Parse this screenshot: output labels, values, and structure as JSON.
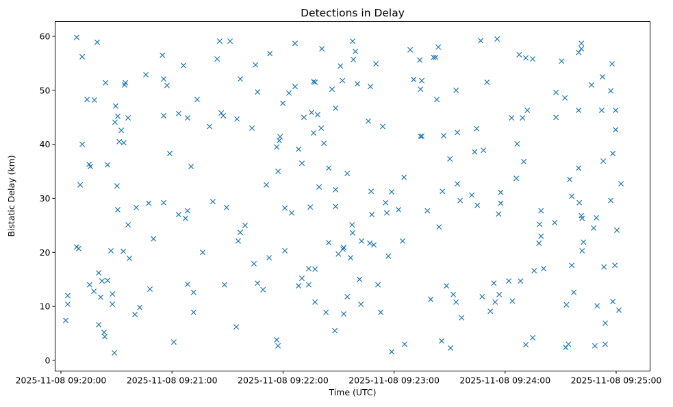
{
  "chart_data": {
    "type": "scatter",
    "title": "Detections in Delay",
    "xlabel": "Time (UTC)",
    "ylabel": "Bistatic Delay (km)",
    "x_units": "seconds after 2025-11-08 09:20:00",
    "xlim": [
      -3,
      307
    ],
    "ylim": [
      -1.2,
      62.5
    ],
    "x_ticks": [
      {
        "value": 0,
        "label": "2025-11-08 09:20:00"
      },
      {
        "value": 60,
        "label": "2025-11-08 09:21:00"
      },
      {
        "value": 120,
        "label": "2025-11-08 09:22:00"
      },
      {
        "value": 180,
        "label": "2025-11-08 09:23:00"
      },
      {
        "value": 240,
        "label": "2025-11-08 09:24:00"
      },
      {
        "value": 300,
        "label": "2025-11-08 09:25:00"
      }
    ],
    "y_ticks": [
      {
        "value": 0,
        "label": "0"
      },
      {
        "value": 10,
        "label": "10"
      },
      {
        "value": 20,
        "label": "20"
      },
      {
        "value": 30,
        "label": "30"
      },
      {
        "value": 40,
        "label": "40"
      },
      {
        "value": 50,
        "label": "50"
      },
      {
        "value": 60,
        "label": "60"
      }
    ],
    "grid": false,
    "marker": "x",
    "color": "#1f77b4",
    "points": [
      [
        2.6,
        7.4
      ],
      [
        3.7,
        12.0
      ],
      [
        3.7,
        10.4
      ],
      [
        8.5,
        59.8
      ],
      [
        8.5,
        21.0
      ],
      [
        9.6,
        20.7
      ],
      [
        10.4,
        32.5
      ],
      [
        11.5,
        56.2
      ],
      [
        11.5,
        40.0
      ],
      [
        14.1,
        48.3
      ],
      [
        15.2,
        36.3
      ],
      [
        15.9,
        35.9
      ],
      [
        15.5,
        14.0
      ],
      [
        17.8,
        12.8
      ],
      [
        18.1,
        48.2
      ],
      [
        19.6,
        58.9
      ],
      [
        20.4,
        16.2
      ],
      [
        20.4,
        6.6
      ],
      [
        21.5,
        11.7
      ],
      [
        22.2,
        14.7
      ],
      [
        23.3,
        5.2
      ],
      [
        23.7,
        4.4
      ],
      [
        24.1,
        51.4
      ],
      [
        25.2,
        36.2
      ],
      [
        25.2,
        14.8
      ],
      [
        27.0,
        20.3
      ],
      [
        27.8,
        12.3
      ],
      [
        27.8,
        10.4
      ],
      [
        28.9,
        1.4
      ],
      [
        29.2,
        44.1
      ],
      [
        29.6,
        47.1
      ],
      [
        30.3,
        32.3
      ],
      [
        30.7,
        45.2
      ],
      [
        30.7,
        27.9
      ],
      [
        31.5,
        40.5
      ],
      [
        32.6,
        42.6
      ],
      [
        33.7,
        20.2
      ],
      [
        34.0,
        40.3
      ],
      [
        34.4,
        51.0
      ],
      [
        34.8,
        51.4
      ],
      [
        36.3,
        25.1
      ],
      [
        36.3,
        44.9
      ],
      [
        37.0,
        18.9
      ],
      [
        40.0,
        8.5
      ],
      [
        40.7,
        28.3
      ],
      [
        42.6,
        9.8
      ],
      [
        45.9,
        52.9
      ],
      [
        47.4,
        29.1
      ],
      [
        48.1,
        13.2
      ],
      [
        50.0,
        22.5
      ],
      [
        54.8,
        56.5
      ],
      [
        55.5,
        29.2
      ],
      [
        55.5,
        52.1
      ],
      [
        55.5,
        45.3
      ],
      [
        57.3,
        50.9
      ],
      [
        58.8,
        38.3
      ],
      [
        61.0,
        3.4
      ],
      [
        63.6,
        45.7
      ],
      [
        63.6,
        27.0
      ],
      [
        66.2,
        54.6
      ],
      [
        67.3,
        26.3
      ],
      [
        68.4,
        27.7
      ],
      [
        68.4,
        44.9
      ],
      [
        68.4,
        14.1
      ],
      [
        70.3,
        35.9
      ],
      [
        71.7,
        12.6
      ],
      [
        71.7,
        8.9
      ],
      [
        73.6,
        48.3
      ],
      [
        76.6,
        20.0
      ],
      [
        80.3,
        43.3
      ],
      [
        82.1,
        29.4
      ],
      [
        84.4,
        55.8
      ],
      [
        85.8,
        59.1
      ],
      [
        86.6,
        45.8
      ],
      [
        87.7,
        45.3
      ],
      [
        88.4,
        14.0
      ],
      [
        89.5,
        28.3
      ],
      [
        91.4,
        59.1
      ],
      [
        94.7,
        6.2
      ],
      [
        95.1,
        44.7
      ],
      [
        95.8,
        22.1
      ],
      [
        96.9,
        23.7
      ],
      [
        96.9,
        52.1
      ],
      [
        99.5,
        25.0
      ],
      [
        103.2,
        43.0
      ],
      [
        104.3,
        17.9
      ],
      [
        105.1,
        54.7
      ],
      [
        106.2,
        49.7
      ],
      [
        106.2,
        14.3
      ],
      [
        109.2,
        13.1
      ],
      [
        111.0,
        32.5
      ],
      [
        112.5,
        19.0
      ],
      [
        112.9,
        56.8
      ],
      [
        116.6,
        3.8
      ],
      [
        117.3,
        2.7
      ],
      [
        116.6,
        39.5
      ],
      [
        117.3,
        35.0
      ],
      [
        118.0,
        40.7
      ],
      [
        118.4,
        41.4
      ],
      [
        119.9,
        47.6
      ],
      [
        121.0,
        28.2
      ],
      [
        121.0,
        20.3
      ],
      [
        123.2,
        49.5
      ],
      [
        124.7,
        27.3
      ],
      [
        126.5,
        50.7
      ],
      [
        126.5,
        58.7
      ],
      [
        128.4,
        39.1
      ],
      [
        128.4,
        13.8
      ],
      [
        130.2,
        36.5
      ],
      [
        130.2,
        15.2
      ],
      [
        131.3,
        45.0
      ],
      [
        133.9,
        14.0
      ],
      [
        133.9,
        17.0
      ],
      [
        134.7,
        28.4
      ],
      [
        135.4,
        45.9
      ],
      [
        136.5,
        51.6
      ],
      [
        136.5,
        42.1
      ],
      [
        137.3,
        51.5
      ],
      [
        137.3,
        10.8
      ],
      [
        137.3,
        16.9
      ],
      [
        138.7,
        45.5
      ],
      [
        139.5,
        32.1
      ],
      [
        140.6,
        43.0
      ],
      [
        141.0,
        57.7
      ],
      [
        142.1,
        40.2
      ],
      [
        143.2,
        8.9
      ],
      [
        144.7,
        21.8
      ],
      [
        144.7,
        35.6
      ],
      [
        146.5,
        50.2
      ],
      [
        148.0,
        5.5
      ],
      [
        148.4,
        46.7
      ],
      [
        148.4,
        31.6
      ],
      [
        148.4,
        28.5
      ],
      [
        149.9,
        19.7
      ],
      [
        151.0,
        54.5
      ],
      [
        152.1,
        51.8
      ],
      [
        152.4,
        20.6
      ],
      [
        152.8,
        20.9
      ],
      [
        152.8,
        8.6
      ],
      [
        154.7,
        34.6
      ],
      [
        154.7,
        11.8
      ],
      [
        156.5,
        19.0
      ],
      [
        157.3,
        25.1
      ],
      [
        157.6,
        23.6
      ],
      [
        157.6,
        59.1
      ],
      [
        158.0,
        55.7
      ],
      [
        159.1,
        57.2
      ],
      [
        160.2,
        51.2
      ],
      [
        161.3,
        15.0
      ],
      [
        162.4,
        22.1
      ],
      [
        162.1,
        10.4
      ],
      [
        166.1,
        44.3
      ],
      [
        166.9,
        21.7
      ],
      [
        167.2,
        50.7
      ],
      [
        167.6,
        31.3
      ],
      [
        168.0,
        27.0
      ],
      [
        169.1,
        21.4
      ],
      [
        170.2,
        54.9
      ],
      [
        171.3,
        14.0
      ],
      [
        172.8,
        8.9
      ],
      [
        173.9,
        43.3
      ],
      [
        175.4,
        29.2
      ],
      [
        176.1,
        27.3
      ],
      [
        176.9,
        19.3
      ],
      [
        178.7,
        1.6
      ],
      [
        178.7,
        31.2
      ],
      [
        182.4,
        27.9
      ],
      [
        184.6,
        22.1
      ],
      [
        185.4,
        33.9
      ],
      [
        185.7,
        3.0
      ],
      [
        188.7,
        57.5
      ],
      [
        190.6,
        52.0
      ],
      [
        193.9,
        55.6
      ],
      [
        194.3,
        50.2
      ],
      [
        195.0,
        51.8
      ],
      [
        194.3,
        41.5
      ],
      [
        195.0,
        41.5
      ],
      [
        198.0,
        27.7
      ],
      [
        199.8,
        11.3
      ],
      [
        201.3,
        56.1
      ],
      [
        202.4,
        56.1
      ],
      [
        203.1,
        48.3
      ],
      [
        203.9,
        58.0
      ],
      [
        204.3,
        24.7
      ],
      [
        205.7,
        3.6
      ],
      [
        206.1,
        31.3
      ],
      [
        206.8,
        41.6
      ],
      [
        208.3,
        13.8
      ],
      [
        210.2,
        37.3
      ],
      [
        210.5,
        2.3
      ],
      [
        212.0,
        12.2
      ],
      [
        213.5,
        50.0
      ],
      [
        213.5,
        10.8
      ],
      [
        214.2,
        32.7
      ],
      [
        214.2,
        42.2
      ],
      [
        215.7,
        29.6
      ],
      [
        216.5,
        7.9
      ],
      [
        222.0,
        30.6
      ],
      [
        223.5,
        38.6
      ],
      [
        224.6,
        42.9
      ],
      [
        225.0,
        28.7
      ],
      [
        226.8,
        59.2
      ],
      [
        227.6,
        11.8
      ],
      [
        228.3,
        38.9
      ],
      [
        230.2,
        51.5
      ],
      [
        232.0,
        9.1
      ],
      [
        233.9,
        14.3
      ],
      [
        234.6,
        10.8
      ],
      [
        235.7,
        59.5
      ],
      [
        236.5,
        27.1
      ],
      [
        236.8,
        12.2
      ],
      [
        237.6,
        29.1
      ],
      [
        237.6,
        31.1
      ],
      [
        242.0,
        14.7
      ],
      [
        243.5,
        44.9
      ],
      [
        243.9,
        11.0
      ],
      [
        246.1,
        33.7
      ],
      [
        246.5,
        40.1
      ],
      [
        247.6,
        56.6
      ],
      [
        248.3,
        14.7
      ],
      [
        249.4,
        44.9
      ],
      [
        250.1,
        36.8
      ],
      [
        251.2,
        2.9
      ],
      [
        251.2,
        56.0
      ],
      [
        252.0,
        46.3
      ],
      [
        254.9,
        4.2
      ],
      [
        254.9,
        55.8
      ],
      [
        255.7,
        16.6
      ],
      [
        258.3,
        21.7
      ],
      [
        258.6,
        25.2
      ],
      [
        259.4,
        27.7
      ],
      [
        259.4,
        23.0
      ],
      [
        260.8,
        17.0
      ],
      [
        266.8,
        25.5
      ],
      [
        267.5,
        49.6
      ],
      [
        267.5,
        45.0
      ],
      [
        270.5,
        55.4
      ],
      [
        272.3,
        48.6
      ],
      [
        272.7,
        2.4
      ],
      [
        273.1,
        10.3
      ],
      [
        274.2,
        3.0
      ],
      [
        274.9,
        33.5
      ],
      [
        276.0,
        30.4
      ],
      [
        276.0,
        17.6
      ],
      [
        277.1,
        12.6
      ],
      [
        279.7,
        46.3
      ],
      [
        279.7,
        35.6
      ],
      [
        279.7,
        57.0
      ],
      [
        280.1,
        29.2
      ],
      [
        281.2,
        57.7
      ],
      [
        281.2,
        58.7
      ],
      [
        281.2,
        26.8
      ],
      [
        281.6,
        26.3
      ],
      [
        281.6,
        20.3
      ],
      [
        282.3,
        21.9
      ],
      [
        286.7,
        51.0
      ],
      [
        287.8,
        24.5
      ],
      [
        288.5,
        2.7
      ],
      [
        289.3,
        26.4
      ],
      [
        289.7,
        10.1
      ],
      [
        292.2,
        46.3
      ],
      [
        292.6,
        52.5
      ],
      [
        293.0,
        36.9
      ],
      [
        293.4,
        17.3
      ],
      [
        294.1,
        3.0
      ],
      [
        294.1,
        6.9
      ],
      [
        297.1,
        29.6
      ],
      [
        297.1,
        49.9
      ],
      [
        297.8,
        54.9
      ],
      [
        298.2,
        38.3
      ],
      [
        298.2,
        10.9
      ],
      [
        299.3,
        17.6
      ],
      [
        299.7,
        46.3
      ],
      [
        299.7,
        42.7
      ],
      [
        300.4,
        24.1
      ],
      [
        301.5,
        9.3
      ],
      [
        302.6,
        32.7
      ]
    ]
  }
}
